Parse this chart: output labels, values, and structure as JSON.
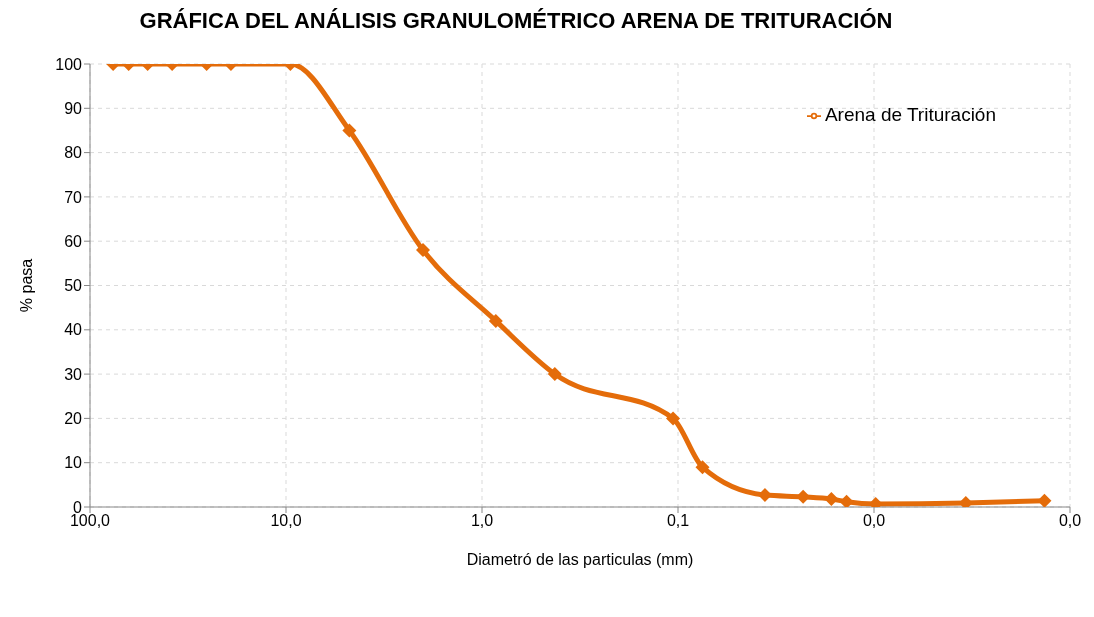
{
  "chart_data": {
    "type": "line",
    "title": "GRÁFICA DEL ANÁLISIS GRANULOMÉTRICO ARENA DE TRITURACIÓN",
    "xlabel": "Diametró de las particulas (mm)",
    "ylabel": "% pasa",
    "x": [
      76.2,
      63.5,
      50.8,
      38.1,
      25.4,
      19.1,
      9.5,
      4.75,
      2.0,
      0.85,
      0.425,
      0.106,
      0.075,
      0.036,
      0.023,
      0.0165,
      0.0138,
      0.0098,
      0.0034,
      0.00135
    ],
    "series": [
      {
        "name": "Arena de Trituración",
        "color": "#e46c0a",
        "values": [
          100,
          100,
          100,
          100,
          100,
          100,
          100,
          85,
          58,
          42,
          30,
          20,
          9,
          2.7,
          2.3,
          1.8,
          1.2,
          0.7,
          0.9,
          1.4
        ]
      }
    ],
    "xlim": [
      100,
      0.001
    ],
    "xticks": [
      {
        "value": 100,
        "label": "100,0"
      },
      {
        "value": 10,
        "label": "10,0"
      },
      {
        "value": 1,
        "label": "1,0"
      },
      {
        "value": 0.1,
        "label": "0,1"
      },
      {
        "value": 0.01,
        "label": "0,0"
      },
      {
        "value": 0.001,
        "label": "0,0"
      }
    ],
    "ylim": [
      0,
      100
    ],
    "yticks": [
      0,
      10,
      20,
      30,
      40,
      50,
      60,
      70,
      80,
      90,
      100
    ],
    "log": "x",
    "grid": true,
    "legend": "top right",
    "marker": "diamond",
    "line_style": "solid"
  }
}
